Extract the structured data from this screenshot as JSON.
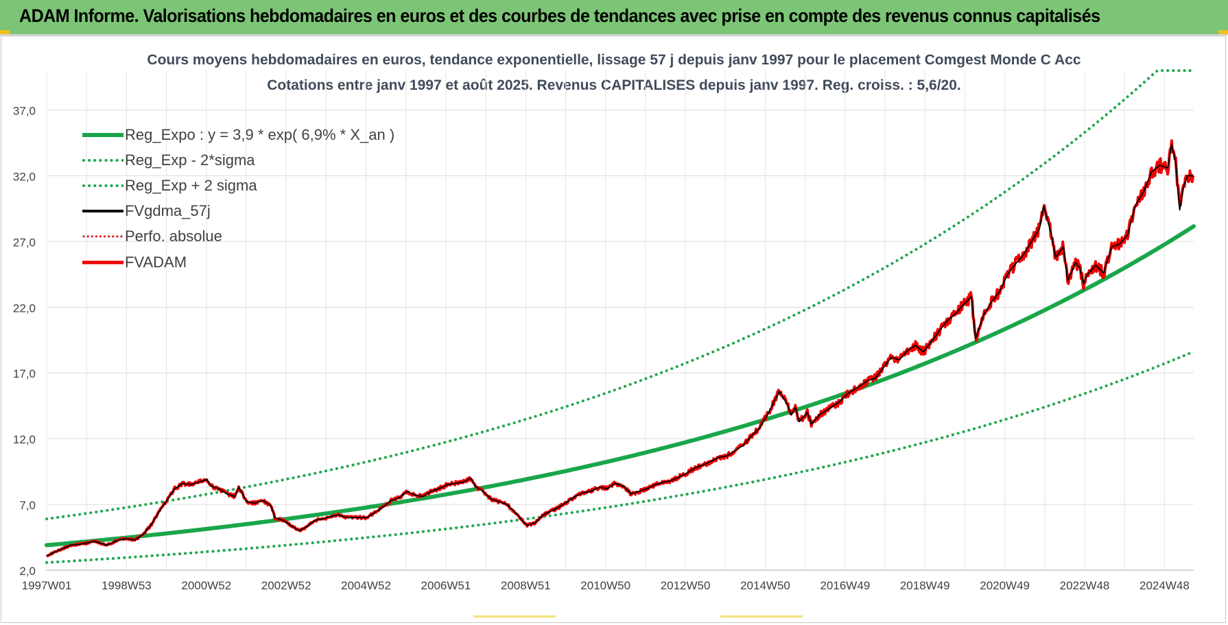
{
  "header": {
    "title": "ADAM Informe. Valorisations hebdomadaires en euros et des courbes de tendances avec prise en compte des revenus connus capitalisés"
  },
  "chart_data": {
    "type": "line",
    "title": "Cours moyens hebdomadaires en euros, tendance exponentielle, lissage 57 j depuis janv 1997 pour le placement Comgest Monde C Acc",
    "subtitle": "Cotations entre janv 1997 et août 2025.  Revenus CAPITALISES depuis janv 1997. Reg. croiss. : 5,6/20.",
    "x_tick_labels": [
      "1997W01",
      "1998W53",
      "2000W52",
      "2002W52",
      "2004W52",
      "2006W51",
      "2008W51",
      "2010W50",
      "2012W50",
      "2014W50",
      "2016W49",
      "2018W49",
      "2020W49",
      "2022W48",
      "2024W48"
    ],
    "x_range_years": [
      1997.0,
      2025.65
    ],
    "y_tick_labels": [
      "2,0",
      "7,0",
      "12,0",
      "17,0",
      "22,0",
      "27,0",
      "32,0",
      "37,0"
    ],
    "ylim": [
      2,
      40
    ],
    "grid": true,
    "legend_position": "top-left",
    "series": [
      {
        "name": "Reg_Expo : y = 3,9 * exp( 6,9% *  X_an )",
        "color": "#1aa64a",
        "style": "solid-thick",
        "formula": {
          "a": 3.9,
          "b": 0.069,
          "x0": 1997.0
        }
      },
      {
        "name": "Reg_Exp - 2*sigma",
        "color": "#1aa64a",
        "style": "dotted",
        "formula": {
          "a": 2.58,
          "b": 0.069,
          "x0": 1997.0
        }
      },
      {
        "name": "Reg_Exp + 2 sigma",
        "color": "#1aa64a",
        "style": "dotted",
        "formula": {
          "a": 5.9,
          "b": 0.069,
          "x0": 1997.0,
          "cap": 40.0
        }
      },
      {
        "name": "FVgdma_57j",
        "color": "#000000",
        "style": "solid"
      },
      {
        "name": "Perfo. absolue",
        "color": "#e00000",
        "style": "dotted"
      },
      {
        "name": "FVADAM",
        "color": "#ee0000",
        "style": "solid-thick",
        "points": [
          [
            1997.0,
            3.1
          ],
          [
            1997.3,
            3.5
          ],
          [
            1997.6,
            3.9
          ],
          [
            1997.9,
            4.0
          ],
          [
            1998.2,
            4.2
          ],
          [
            1998.5,
            3.9
          ],
          [
            1998.8,
            4.3
          ],
          [
            1999.0,
            4.4
          ],
          [
            1999.2,
            4.3
          ],
          [
            1999.4,
            4.7
          ],
          [
            1999.6,
            5.4
          ],
          [
            1999.8,
            6.4
          ],
          [
            2000.0,
            7.3
          ],
          [
            2000.2,
            8.2
          ],
          [
            2000.4,
            8.6
          ],
          [
            2000.6,
            8.5
          ],
          [
            2000.8,
            8.7
          ],
          [
            2001.0,
            8.9
          ],
          [
            2001.1,
            8.4
          ],
          [
            2001.3,
            8.2
          ],
          [
            2001.5,
            7.8
          ],
          [
            2001.7,
            7.6
          ],
          [
            2001.8,
            8.3
          ],
          [
            2002.0,
            7.2
          ],
          [
            2002.2,
            7.1
          ],
          [
            2002.4,
            7.3
          ],
          [
            2002.6,
            6.9
          ],
          [
            2002.7,
            6.0
          ],
          [
            2002.9,
            5.8
          ],
          [
            2003.1,
            5.4
          ],
          [
            2003.3,
            5.0
          ],
          [
            2003.5,
            5.3
          ],
          [
            2003.7,
            5.8
          ],
          [
            2003.9,
            5.9
          ],
          [
            2004.1,
            6.1
          ],
          [
            2004.3,
            6.2
          ],
          [
            2004.5,
            6.0
          ],
          [
            2004.7,
            6.0
          ],
          [
            2005.0,
            6.0
          ],
          [
            2005.2,
            6.4
          ],
          [
            2005.4,
            6.8
          ],
          [
            2005.6,
            7.3
          ],
          [
            2005.8,
            7.5
          ],
          [
            2006.0,
            8.0
          ],
          [
            2006.2,
            7.7
          ],
          [
            2006.4,
            7.6
          ],
          [
            2006.6,
            8.0
          ],
          [
            2006.8,
            8.2
          ],
          [
            2007.0,
            8.5
          ],
          [
            2007.2,
            8.6
          ],
          [
            2007.4,
            8.7
          ],
          [
            2007.6,
            9.0
          ],
          [
            2007.7,
            8.4
          ],
          [
            2007.9,
            8.0
          ],
          [
            2008.1,
            7.4
          ],
          [
            2008.3,
            7.2
          ],
          [
            2008.5,
            7.0
          ],
          [
            2008.7,
            6.4
          ],
          [
            2008.9,
            5.7
          ],
          [
            2009.0,
            5.4
          ],
          [
            2009.2,
            5.6
          ],
          [
            2009.4,
            6.2
          ],
          [
            2009.6,
            6.5
          ],
          [
            2009.8,
            6.8
          ],
          [
            2010.0,
            7.2
          ],
          [
            2010.2,
            7.6
          ],
          [
            2010.4,
            7.9
          ],
          [
            2010.6,
            8.0
          ],
          [
            2010.8,
            8.3
          ],
          [
            2011.0,
            8.2
          ],
          [
            2011.2,
            8.6
          ],
          [
            2011.4,
            8.4
          ],
          [
            2011.6,
            7.8
          ],
          [
            2011.8,
            8.0
          ],
          [
            2012.0,
            8.2
          ],
          [
            2012.2,
            8.5
          ],
          [
            2012.4,
            8.7
          ],
          [
            2012.6,
            8.8
          ],
          [
            2012.8,
            9.1
          ],
          [
            2013.0,
            9.4
          ],
          [
            2013.2,
            9.8
          ],
          [
            2013.4,
            10.0
          ],
          [
            2013.6,
            10.3
          ],
          [
            2013.8,
            10.6
          ],
          [
            2014.0,
            10.7
          ],
          [
            2014.2,
            11.1
          ],
          [
            2014.4,
            11.5
          ],
          [
            2014.6,
            12.2
          ],
          [
            2014.8,
            12.8
          ],
          [
            2015.0,
            13.8
          ],
          [
            2015.2,
            15.0
          ],
          [
            2015.3,
            15.6
          ],
          [
            2015.5,
            14.6
          ],
          [
            2015.6,
            13.8
          ],
          [
            2015.7,
            14.4
          ],
          [
            2015.8,
            13.3
          ],
          [
            2016.0,
            14.0
          ],
          [
            2016.1,
            13.1
          ],
          [
            2016.3,
            13.8
          ],
          [
            2016.5,
            14.2
          ],
          [
            2016.8,
            14.8
          ],
          [
            2017.0,
            15.4
          ],
          [
            2017.2,
            15.8
          ],
          [
            2017.5,
            16.4
          ],
          [
            2017.7,
            16.6
          ],
          [
            2017.9,
            17.4
          ],
          [
            2018.1,
            18.2
          ],
          [
            2018.3,
            18.0
          ],
          [
            2018.5,
            18.7
          ],
          [
            2018.7,
            19.1
          ],
          [
            2018.9,
            18.6
          ],
          [
            2019.1,
            19.4
          ],
          [
            2019.3,
            20.2
          ],
          [
            2019.5,
            21.0
          ],
          [
            2019.7,
            21.5
          ],
          [
            2019.9,
            22.2
          ],
          [
            2020.1,
            22.8
          ],
          [
            2020.2,
            19.6
          ],
          [
            2020.4,
            21.4
          ],
          [
            2020.6,
            22.4
          ],
          [
            2020.8,
            23.2
          ],
          [
            2021.0,
            24.5
          ],
          [
            2021.2,
            25.3
          ],
          [
            2021.4,
            26.0
          ],
          [
            2021.6,
            27.0
          ],
          [
            2021.8,
            28.0
          ],
          [
            2021.9,
            29.7
          ],
          [
            2022.1,
            27.5
          ],
          [
            2022.2,
            25.8
          ],
          [
            2022.4,
            26.6
          ],
          [
            2022.5,
            24.0
          ],
          [
            2022.7,
            25.4
          ],
          [
            2022.8,
            25.0
          ],
          [
            2022.9,
            23.8
          ],
          [
            2023.0,
            24.5
          ],
          [
            2023.2,
            25.2
          ],
          [
            2023.4,
            24.6
          ],
          [
            2023.6,
            26.6
          ],
          [
            2023.8,
            26.8
          ],
          [
            2024.0,
            27.5
          ],
          [
            2024.2,
            29.8
          ],
          [
            2024.4,
            30.8
          ],
          [
            2024.6,
            32.3
          ],
          [
            2024.8,
            32.8
          ],
          [
            2025.0,
            32.6
          ],
          [
            2025.1,
            34.4
          ],
          [
            2025.2,
            33.0
          ],
          [
            2025.3,
            29.4
          ],
          [
            2025.4,
            31.2
          ],
          [
            2025.5,
            32.0
          ],
          [
            2025.65,
            32.0
          ]
        ]
      }
    ]
  }
}
